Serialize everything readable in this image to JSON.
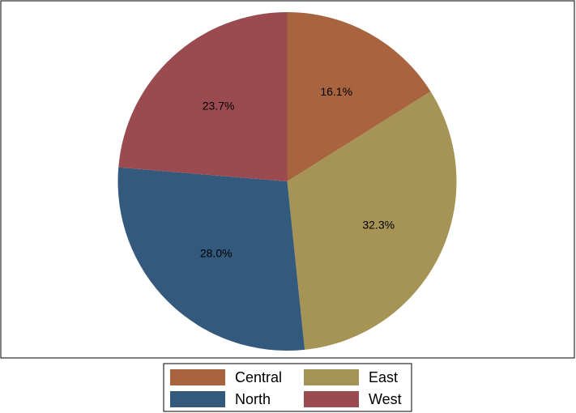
{
  "chart_data": {
    "type": "pie",
    "title": "",
    "slices": [
      {
        "label": "Central",
        "value": 16.1,
        "value_label": "16.1%",
        "color": "#a8633f"
      },
      {
        "label": "East",
        "value": 32.3,
        "value_label": "32.3%",
        "color": "#a69456"
      },
      {
        "label": "North",
        "value": 28.0,
        "value_label": "28.0%",
        "color": "#33597d"
      },
      {
        "label": "West",
        "value": 23.7,
        "value_label": "23.7%",
        "color": "#9b4a50"
      }
    ],
    "start_angle": "12 o'clock",
    "direction": "clockwise",
    "legend": {
      "placement": "bottom",
      "columns": 2,
      "order": [
        "Central",
        "East",
        "North",
        "West"
      ]
    }
  }
}
